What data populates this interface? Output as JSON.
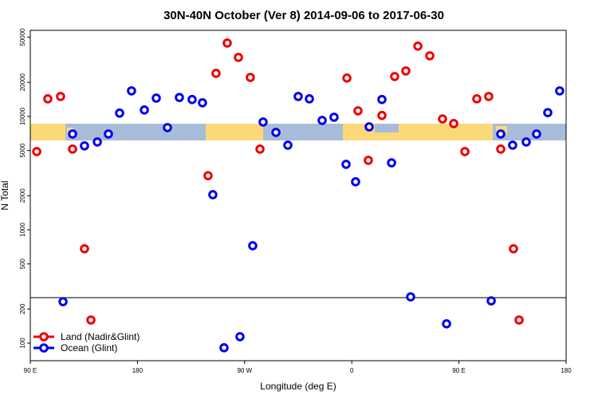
{
  "chart_data": {
    "type": "scatter",
    "title": "30N-40N October (Ver 8)   2014-09-06 to 2017-06-30",
    "x_label": "Longitude (deg E)",
    "y_label": "N Total",
    "yscale": "log",
    "xlim": [
      -270,
      180
    ],
    "ylim": [
      70,
      57500
    ],
    "xticks": [
      {
        "value": -270,
        "label": "90 E"
      },
      {
        "value": -180,
        "label": "180"
      },
      {
        "value": -90,
        "label": "90 W"
      },
      0,
      {
        "value": 90,
        "label": "90 E"
      },
      {
        "value": 180,
        "label": "180"
      }
    ],
    "yticks": [
      100,
      200,
      500,
      1000,
      2000,
      5000,
      10000,
      20000,
      50000
    ],
    "legend": "bottom-left",
    "series": [
      {
        "name": "Land (Nadir&Glint)",
        "color": "#ee0000",
        "x": [
          -264.6,
          -255.3,
          -244.6,
          -234.5,
          -224.5,
          -219.1,
          -120.7,
          -114,
          -104.6,
          -95.2,
          -85.2,
          -77.1,
          -4.1,
          5.2,
          13.9,
          25.3,
          36,
          45.4,
          55.5,
          65.5,
          76.2,
          85.6,
          95,
          105,
          115,
          125.1,
          135.8,
          140.5
        ],
        "values": [
          4900,
          14300,
          15000,
          5150,
          680,
          160,
          3000,
          24000,
          44400,
          33200,
          22100,
          5150,
          21800,
          11200,
          4100,
          10200,
          22500,
          25200,
          41700,
          34300,
          9500,
          8650,
          4900,
          14300,
          15000,
          5150,
          680,
          160
        ]
      },
      {
        "name": "Ocean (Glint)",
        "color": "#0000ee",
        "x": [
          -242.5,
          -234.5,
          -224.5,
          -213.7,
          -204.4,
          -195,
          -185,
          -174.2,
          -164.2,
          -154.8,
          -144.8,
          -134.1,
          -125.4,
          -116.7,
          -107.3,
          -93.9,
          -83.2,
          -74.5,
          -63.7,
          -53.7,
          -45,
          -35.6,
          -24.9,
          -14.9,
          -4.8,
          3.2,
          14.6,
          25.3,
          33.4,
          49.4,
          79.6,
          117.1,
          125.1,
          135.1,
          146.5,
          155.2,
          164.6,
          174.6
        ],
        "values": [
          232,
          7000,
          5500,
          5950,
          7000,
          10700,
          16800,
          11400,
          14500,
          7970,
          14700,
          14100,
          13200,
          2040,
          91,
          114,
          723,
          8930,
          7230,
          5580,
          15000,
          14300,
          9220,
          9840,
          3780,
          2650,
          8090,
          14100,
          3900,
          256,
          148,
          236,
          7000,
          5580,
          5950,
          7000,
          10800,
          16800
        ]
      }
    ]
  }
}
